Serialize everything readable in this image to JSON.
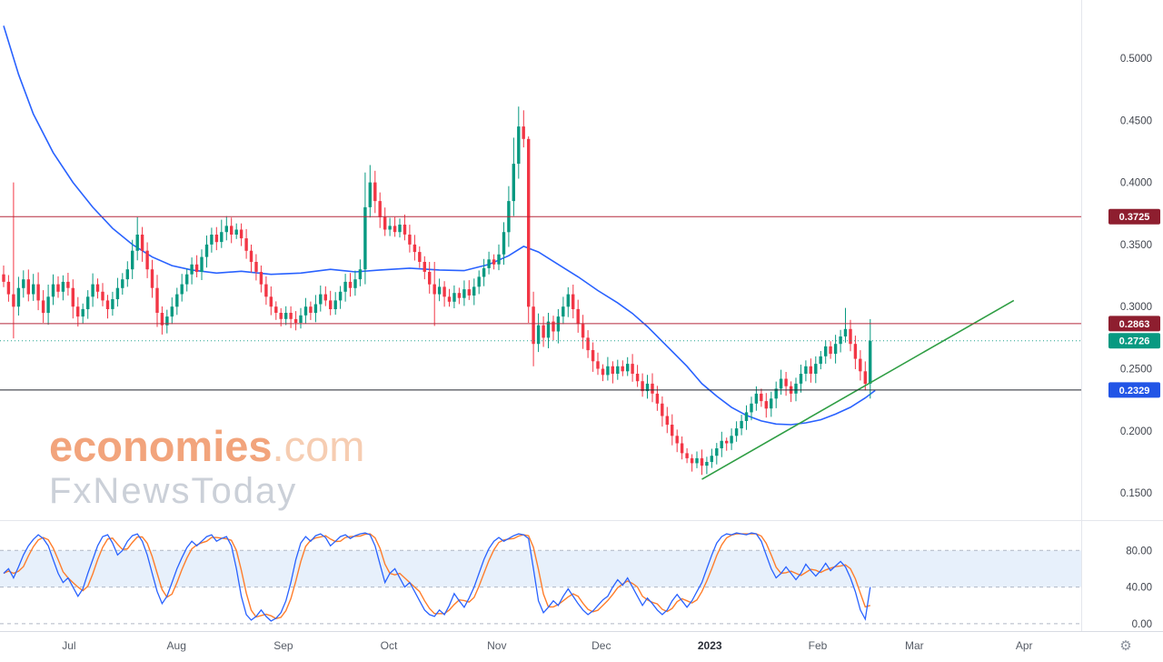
{
  "watermark": {
    "brand": "economies",
    "brand_suffix": ".com",
    "tagline": "FxNewsToday"
  },
  "icons": {
    "gear": "⚙"
  },
  "colors": {
    "up": "#089981",
    "down": "#f23645",
    "ma": "#2962ff",
    "trend": "#2f9e44",
    "stoch_k": "#2962ff",
    "stoch_d": "#ff7d2b",
    "band": "#cfe1f8",
    "dashed_level": "#a8b0bf",
    "level_red": "#b5283b",
    "tag_red": "#8e1e2f",
    "tag_teal": "#089981",
    "tag_blue": "#2255e6",
    "level_dark": "#20242e",
    "axis_text": "#40444d",
    "brand_orange": "#f2a47c"
  },
  "chart_data": {
    "type": "candlestick",
    "description": "Daily candlestick price chart (late Jun 2022 - mid Feb 2023) with blue moving average, green rising trendline, horizontal levels at 0.3725 / 0.2863 / 0.2329, last price 0.2726, and a stochastic oscillator sub-panel (blue %K, orange %D, bands at 80/40/0).",
    "x_axis_labels": [
      {
        "label": "Jul",
        "i": 13.2,
        "strong": false
      },
      {
        "label": "Aug",
        "i": 34.9,
        "strong": false
      },
      {
        "label": "Sep",
        "i": 56.5,
        "strong": false
      },
      {
        "label": "Oct",
        "i": 77.8,
        "strong": false
      },
      {
        "label": "Nov",
        "i": 99.6,
        "strong": false
      },
      {
        "label": "Dec",
        "i": 120.7,
        "strong": false
      },
      {
        "label": "2023",
        "i": 142.6,
        "strong": true
      },
      {
        "label": "Feb",
        "i": 164.4,
        "strong": false
      },
      {
        "label": "Mar",
        "i": 183.9,
        "strong": false
      },
      {
        "label": "Apr",
        "i": 206.1,
        "strong": false
      }
    ],
    "y_ticks": [
      {
        "v": 0.5,
        "label": "0.5000"
      },
      {
        "v": 0.45,
        "label": "0.4500"
      },
      {
        "v": 0.4,
        "label": "0.4000"
      },
      {
        "v": 0.35,
        "label": "0.3500"
      },
      {
        "v": 0.3,
        "label": "0.3000"
      },
      {
        "v": 0.25,
        "label": "0.2500"
      },
      {
        "v": 0.2,
        "label": "0.2000"
      },
      {
        "v": 0.15,
        "label": "0.1500"
      }
    ],
    "stoch_ticks": [
      {
        "v": 80,
        "label": "80.00"
      },
      {
        "v": 40,
        "label": "40.00"
      },
      {
        "v": 0,
        "label": "0.00"
      }
    ],
    "levels": [
      {
        "p": 0.3725,
        "label": "0.3725",
        "style": "solid",
        "line": "#b5283b",
        "tag": "#8e1e2f"
      },
      {
        "p": 0.2863,
        "label": "0.2863",
        "style": "solid",
        "line": "#b5283b",
        "tag": "#8e1e2f"
      },
      {
        "p": 0.2726,
        "label": "0.2726",
        "style": "dotted",
        "line": "#089981",
        "tag": "#089981"
      },
      {
        "p": 0.2329,
        "label": "0.2329",
        "style": "solid",
        "line": "#20242e",
        "tag": "#2255e6"
      }
    ],
    "last_price": 0.2726,
    "ylim_price": [
      0.1289,
      0.5468
    ],
    "ylim_stoch": [
      -8,
      112
    ],
    "closes": [
      0.32,
      0.31,
      0.3,
      0.315,
      0.322,
      0.31,
      0.318,
      0.305,
      0.295,
      0.308,
      0.318,
      0.312,
      0.32,
      0.315,
      0.3,
      0.292,
      0.298,
      0.308,
      0.318,
      0.312,
      0.305,
      0.298,
      0.306,
      0.315,
      0.322,
      0.33,
      0.345,
      0.358,
      0.345,
      0.33,
      0.315,
      0.295,
      0.285,
      0.292,
      0.3,
      0.31,
      0.318,
      0.326,
      0.334,
      0.328,
      0.34,
      0.35,
      0.358,
      0.352,
      0.36,
      0.365,
      0.358,
      0.362,
      0.355,
      0.345,
      0.336,
      0.328,
      0.318,
      0.308,
      0.3,
      0.295,
      0.29,
      0.295,
      0.29,
      0.287,
      0.293,
      0.3,
      0.295,
      0.302,
      0.31,
      0.305,
      0.298,
      0.305,
      0.312,
      0.32,
      0.315,
      0.322,
      0.33,
      0.38,
      0.4,
      0.385,
      0.372,
      0.362,
      0.365,
      0.36,
      0.366,
      0.358,
      0.35,
      0.344,
      0.336,
      0.328,
      0.318,
      0.31,
      0.316,
      0.308,
      0.304,
      0.311,
      0.307,
      0.314,
      0.309,
      0.316,
      0.324,
      0.331,
      0.338,
      0.334,
      0.342,
      0.36,
      0.385,
      0.415,
      0.445,
      0.435,
      0.3,
      0.27,
      0.285,
      0.275,
      0.288,
      0.28,
      0.292,
      0.3,
      0.31,
      0.298,
      0.286,
      0.275,
      0.265,
      0.256,
      0.25,
      0.245,
      0.252,
      0.246,
      0.252,
      0.248,
      0.254,
      0.246,
      0.24,
      0.232,
      0.238,
      0.23,
      0.222,
      0.212,
      0.205,
      0.196,
      0.19,
      0.182,
      0.178,
      0.174,
      0.178,
      0.172,
      0.175,
      0.18,
      0.186,
      0.192,
      0.19,
      0.196,
      0.202,
      0.208,
      0.215,
      0.222,
      0.23,
      0.224,
      0.218,
      0.226,
      0.234,
      0.242,
      0.236,
      0.23,
      0.238,
      0.246,
      0.252,
      0.246,
      0.254,
      0.26,
      0.268,
      0.262,
      0.27,
      0.276,
      0.282,
      0.27,
      0.258,
      0.248,
      0.238,
      0.2726
    ],
    "wick_overrides": {
      "2": [
        0.4,
        0.2745
      ],
      "27": [
        0.372,
        null
      ],
      "44": [
        0.37,
        null
      ],
      "45": [
        0.3728,
        null
      ],
      "73": [
        0.408,
        null
      ],
      "74": [
        0.414,
        null
      ],
      "80": [
        0.371,
        null
      ],
      "87": [
        0.336,
        0.2845
      ],
      "103": [
        0.436,
        null
      ],
      "104": [
        0.461,
        null
      ],
      "105": [
        0.458,
        null
      ],
      "106": [
        0.437,
        0.287
      ],
      "107": [
        null,
        0.252
      ],
      "170": [
        0.299,
        null
      ],
      "174": [
        null,
        0.2325
      ],
      "175": [
        0.29,
        null
      ]
    },
    "ma_blue": [
      [
        0,
        0.526
      ],
      [
        3,
        0.487
      ],
      [
        6,
        0.455
      ],
      [
        10,
        0.424
      ],
      [
        14,
        0.4
      ],
      [
        18,
        0.38
      ],
      [
        22,
        0.363
      ],
      [
        26,
        0.35
      ],
      [
        30,
        0.34
      ],
      [
        34,
        0.333
      ],
      [
        38,
        0.3295
      ],
      [
        43,
        0.327
      ],
      [
        48,
        0.3285
      ],
      [
        54,
        0.326
      ],
      [
        60,
        0.327
      ],
      [
        66,
        0.33
      ],
      [
        71,
        0.328
      ],
      [
        76,
        0.3295
      ],
      [
        82,
        0.331
      ],
      [
        88,
        0.3295
      ],
      [
        93,
        0.329
      ],
      [
        98,
        0.334
      ],
      [
        102,
        0.341
      ],
      [
        105,
        0.3485
      ],
      [
        108,
        0.344
      ],
      [
        112,
        0.334
      ],
      [
        116,
        0.324
      ],
      [
        120,
        0.313
      ],
      [
        124,
        0.303
      ],
      [
        127,
        0.2945
      ],
      [
        130,
        0.284
      ],
      [
        134,
        0.268
      ],
      [
        138,
        0.252
      ],
      [
        141,
        0.238
      ],
      [
        144,
        0.228
      ],
      [
        147,
        0.219
      ],
      [
        150,
        0.2125
      ],
      [
        153,
        0.208
      ],
      [
        156,
        0.2055
      ],
      [
        159,
        0.205
      ],
      [
        162,
        0.2065
      ],
      [
        165,
        0.209
      ],
      [
        168,
        0.2135
      ],
      [
        171,
        0.219
      ],
      [
        174,
        0.2265
      ],
      [
        176,
        0.2325
      ]
    ],
    "trendline_green": {
      "from": [
        141,
        0.161
      ],
      "to": [
        204,
        0.305
      ]
    },
    "stochastic_k": [
      55,
      60,
      50,
      62,
      75,
      85,
      92,
      97,
      93,
      85,
      70,
      55,
      45,
      50,
      40,
      30,
      38,
      55,
      70,
      85,
      95,
      97,
      88,
      75,
      80,
      90,
      96,
      98,
      90,
      75,
      55,
      35,
      22,
      30,
      45,
      60,
      72,
      83,
      90,
      85,
      90,
      95,
      97,
      90,
      93,
      95,
      85,
      60,
      30,
      10,
      4,
      8,
      15,
      8,
      3,
      6,
      12,
      25,
      45,
      70,
      88,
      95,
      90,
      96,
      98,
      94,
      85,
      90,
      95,
      97,
      93,
      96,
      98,
      99,
      97,
      85,
      65,
      45,
      55,
      60,
      50,
      40,
      45,
      35,
      25,
      15,
      10,
      8,
      15,
      10,
      20,
      33,
      25,
      18,
      28,
      40,
      55,
      70,
      82,
      90,
      94,
      90,
      93,
      96,
      98,
      97,
      93,
      60,
      25,
      12,
      18,
      25,
      20,
      30,
      38,
      30,
      22,
      15,
      10,
      14,
      20,
      26,
      30,
      40,
      48,
      42,
      50,
      40,
      30,
      20,
      28,
      22,
      15,
      10,
      15,
      25,
      32,
      25,
      18,
      25,
      35,
      45,
      60,
      75,
      88,
      95,
      98,
      97,
      99,
      98,
      97,
      99,
      98,
      90,
      75,
      60,
      50,
      55,
      62,
      55,
      48,
      55,
      65,
      58,
      52,
      58,
      66,
      58,
      63,
      68,
      62,
      50,
      35,
      15,
      5,
      40
    ]
  }
}
